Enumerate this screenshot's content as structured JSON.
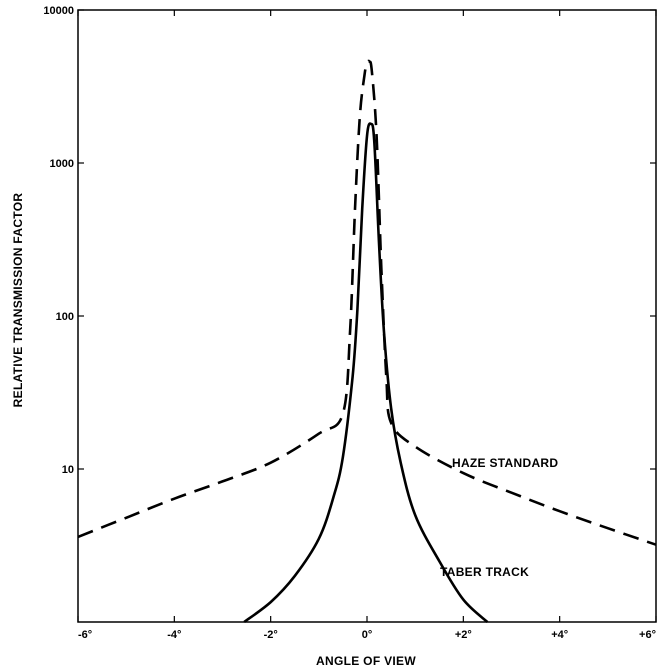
{
  "chart_data": {
    "type": "line",
    "xlabel": "ANGLE OF VIEW",
    "ylabel": "RELATIVE TRANSMISSION FACTOR",
    "x_scale": "linear",
    "y_scale": "log",
    "xlim": [
      -6,
      6
    ],
    "ylim": [
      1,
      10000
    ],
    "x_ticks": [
      {
        "value": -6,
        "label": "-6°"
      },
      {
        "value": -4,
        "label": "-4°"
      },
      {
        "value": -2,
        "label": "-2°"
      },
      {
        "value": 0,
        "label": "0°"
      },
      {
        "value": 2,
        "label": "+2°"
      },
      {
        "value": 4,
        "label": "+4°"
      },
      {
        "value": 6,
        "label": "+6°"
      }
    ],
    "y_ticks": [
      {
        "value": 10,
        "label": "10"
      },
      {
        "value": 100,
        "label": "100"
      },
      {
        "value": 1000,
        "label": "1000"
      },
      {
        "value": 10000,
        "label": "10000"
      }
    ],
    "grid": false,
    "series": [
      {
        "name": "HAZE STANDARD",
        "style": "dashed",
        "color": "#000000",
        "x": [
          -6,
          -5,
          -4,
          -3,
          -2,
          -1,
          -0.5,
          -0.35,
          -0.25,
          -0.15,
          -0.05,
          0,
          0.05,
          0.1,
          0.2,
          0.3,
          0.4,
          0.5,
          1,
          2,
          3,
          4,
          5,
          6
        ],
        "y": [
          3.6,
          4.8,
          6.4,
          8.3,
          11,
          17,
          23,
          80,
          500,
          2000,
          3800,
          4500,
          4600,
          4000,
          1500,
          200,
          40,
          20,
          14,
          9.4,
          7,
          5.3,
          4.1,
          3.2
        ]
      },
      {
        "name": "TABER TRACK",
        "style": "solid",
        "color": "#000000",
        "x": [
          -2.55,
          -2,
          -1.5,
          -1,
          -0.7,
          -0.5,
          -0.3,
          -0.2,
          -0.1,
          0,
          0.08,
          0.15,
          0.25,
          0.35,
          0.5,
          0.7,
          1,
          1.5,
          2,
          2.5
        ],
        "y": [
          1,
          1.35,
          2,
          3.5,
          6.5,
          12,
          40,
          110,
          500,
          1500,
          1800,
          1400,
          300,
          80,
          25,
          11,
          5,
          2.5,
          1.4,
          1
        ]
      }
    ]
  }
}
